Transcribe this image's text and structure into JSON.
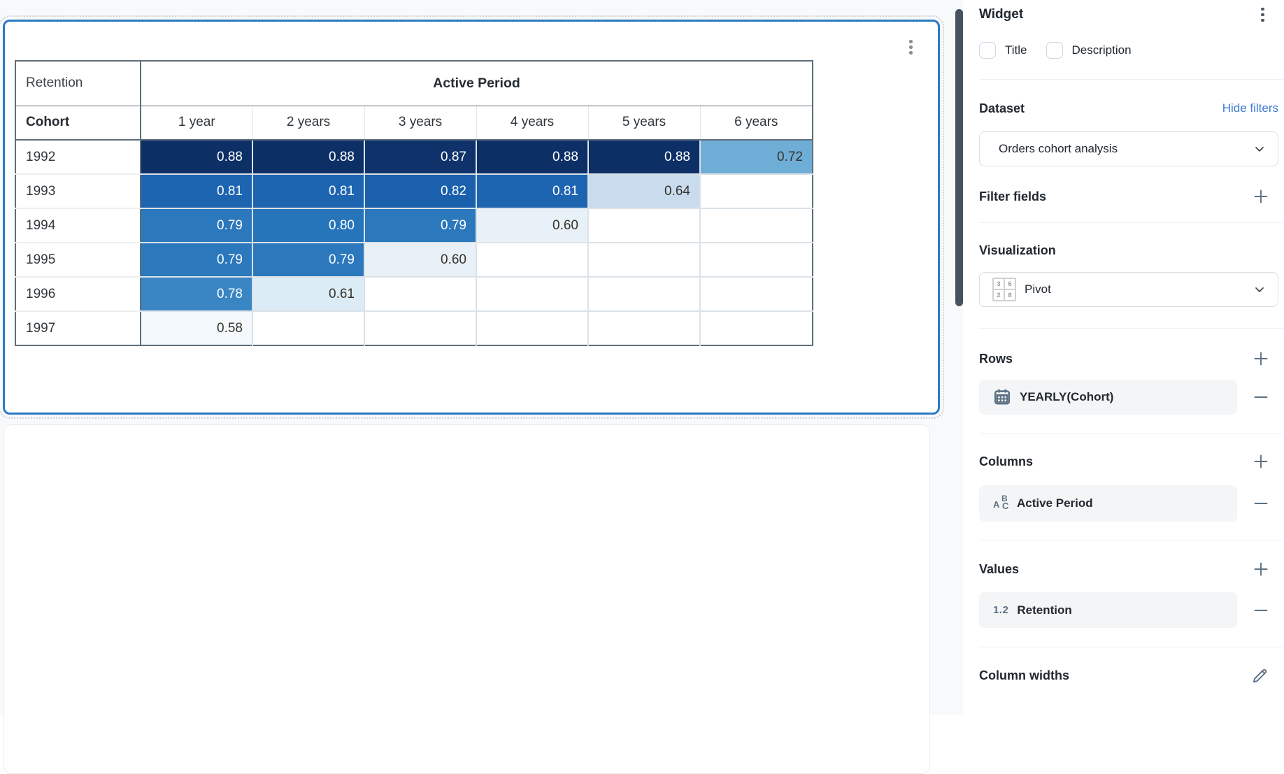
{
  "chart_data": {
    "type": "heatmap",
    "measure_label": "Retention",
    "column_group_label": "Active Period",
    "row_dimension_label": "Cohort",
    "columns": [
      "1 year",
      "2 years",
      "3 years",
      "4 years",
      "5 years",
      "6 years"
    ],
    "rows": [
      {
        "cohort": "1992",
        "cells": [
          {
            "v": "0.88",
            "bg": "#0c2f66",
            "fg": "#ffffff"
          },
          {
            "v": "0.88",
            "bg": "#0c2f66",
            "fg": "#ffffff"
          },
          {
            "v": "0.87",
            "bg": "#0e3269",
            "fg": "#ffffff"
          },
          {
            "v": "0.88",
            "bg": "#0c2f66",
            "fg": "#ffffff"
          },
          {
            "v": "0.88",
            "bg": "#0c2f66",
            "fg": "#ffffff"
          },
          {
            "v": "0.72",
            "bg": "#6eadd6",
            "fg": "#36322b"
          }
        ]
      },
      {
        "cohort": "1993",
        "cells": [
          {
            "v": "0.81",
            "bg": "#1d65b1",
            "fg": "#ffffff"
          },
          {
            "v": "0.81",
            "bg": "#1d65b1",
            "fg": "#ffffff"
          },
          {
            "v": "0.82",
            "bg": "#1a60ac",
            "fg": "#ffffff"
          },
          {
            "v": "0.81",
            "bg": "#1d65b1",
            "fg": "#ffffff"
          },
          {
            "v": "0.64",
            "bg": "#c8dcee",
            "fg": "#36322b"
          },
          null
        ]
      },
      {
        "cohort": "1994",
        "cells": [
          {
            "v": "0.79",
            "bg": "#2b78bd",
            "fg": "#ffffff"
          },
          {
            "v": "0.80",
            "bg": "#2674ba",
            "fg": "#ffffff"
          },
          {
            "v": "0.79",
            "bg": "#2b78bd",
            "fg": "#ffffff"
          },
          {
            "v": "0.60",
            "bg": "#e8f0f8",
            "fg": "#36322b"
          },
          null,
          null
        ]
      },
      {
        "cohort": "1995",
        "cells": [
          {
            "v": "0.79",
            "bg": "#2b78bd",
            "fg": "#ffffff"
          },
          {
            "v": "0.79",
            "bg": "#2b78bd",
            "fg": "#ffffff"
          },
          {
            "v": "0.60",
            "bg": "#e8f0f8",
            "fg": "#36322b"
          },
          null,
          null,
          null
        ]
      },
      {
        "cohort": "1996",
        "cells": [
          {
            "v": "0.78",
            "bg": "#3a85c3",
            "fg": "#ffffff"
          },
          {
            "v": "0.61",
            "bg": "#dcecf7",
            "fg": "#36322b"
          },
          null,
          null,
          null,
          null
        ]
      },
      {
        "cohort": "1997",
        "cells": [
          {
            "v": "0.58",
            "bg": "#f4f9fd",
            "fg": "#36322b"
          },
          null,
          null,
          null,
          null,
          null
        ]
      }
    ],
    "value_range": [
      0.58,
      0.88
    ],
    "palette": "blues",
    "legend_position": "none",
    "grid": true
  },
  "sidebar": {
    "title": "Widget",
    "checkboxes": [
      {
        "label": "Title",
        "checked": false
      },
      {
        "label": "Description",
        "checked": false
      }
    ],
    "dataset": {
      "label": "Dataset",
      "action": "Hide filters",
      "selected": "Orders cohort analysis"
    },
    "filter_fields": {
      "label": "Filter fields"
    },
    "visualization": {
      "label": "Visualization",
      "selected": "Pivot",
      "icon_digits": [
        "3",
        "6",
        "2",
        "8"
      ]
    },
    "rows": {
      "label": "Rows",
      "items": [
        {
          "label": "YEARLY(Cohort)",
          "icon": "calendar"
        }
      ]
    },
    "columns": {
      "label": "Columns",
      "items": [
        {
          "label": "Active Period",
          "icon": "string",
          "icon_letters": [
            "A",
            "B",
            "C"
          ]
        }
      ]
    },
    "values": {
      "label": "Values",
      "items": [
        {
          "label": "Retention",
          "icon": "number",
          "icon_text": "1.2"
        }
      ]
    },
    "column_widths": {
      "label": "Column widths"
    }
  },
  "colors": {
    "selection_border": "#2b7ac3",
    "canvas_bg": "#f8f9fa",
    "scrollbar": "#46525e",
    "link": "#3d7ad1",
    "icon": "#5d7186",
    "dark_border": "#5f6e7a"
  }
}
